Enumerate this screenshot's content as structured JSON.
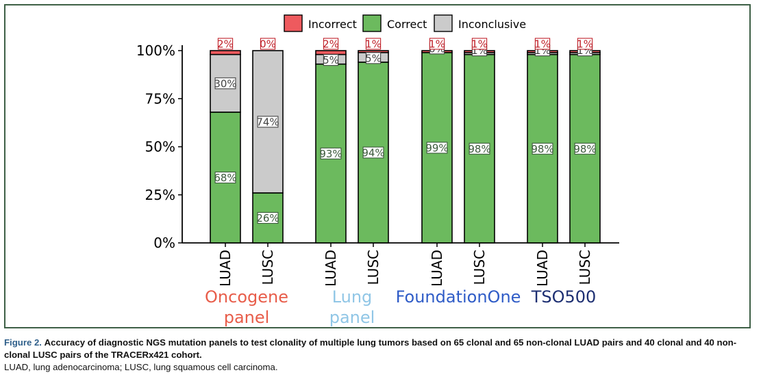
{
  "chart_data": {
    "type": "stacked-bar",
    "y_axis": {
      "ticks": [
        "0%",
        "25%",
        "50%",
        "75%",
        "100%"
      ],
      "ylim": [
        0,
        100
      ],
      "unit": "%"
    },
    "legend": {
      "placement": "top-center",
      "entries": [
        {
          "name": "Incorrect",
          "color": "#ee5a5e"
        },
        {
          "name": "Correct",
          "color": "#6cba5e"
        },
        {
          "name": "Inconclusive",
          "color": "#cbcbcb"
        }
      ]
    },
    "groups": [
      {
        "name": "Oncogene panel",
        "label_lines": [
          "Oncogene",
          "panel"
        ],
        "color": "#e85d4a",
        "bars": [
          {
            "label": "LUAD",
            "correct": 68,
            "inconclusive": 30,
            "incorrect": 2,
            "labels": {
              "correct": "68%",
              "inconclusive": "30%",
              "incorrect": "2%"
            }
          },
          {
            "label": "LUSC",
            "correct": 26,
            "inconclusive": 74,
            "incorrect": 0,
            "labels": {
              "correct": "26%",
              "inconclusive": "74%",
              "incorrect": "0%"
            }
          }
        ]
      },
      {
        "name": "Lung panel",
        "label_lines": [
          "Lung",
          "panel"
        ],
        "color": "#90c6e6",
        "bars": [
          {
            "label": "LUAD",
            "correct": 93,
            "inconclusive": 5,
            "incorrect": 2,
            "labels": {
              "correct": "93%",
              "inconclusive": "5%",
              "incorrect": "2%"
            }
          },
          {
            "label": "LUSC",
            "correct": 94,
            "inconclusive": 5,
            "incorrect": 1,
            "labels": {
              "correct": "94%",
              "inconclusive": "5%",
              "incorrect": "1%"
            }
          }
        ]
      },
      {
        "name": "FoundationOne",
        "label_lines": [
          "FoundationOne"
        ],
        "color": "#2f5cc7",
        "bars": [
          {
            "label": "LUAD",
            "correct": 99,
            "inconclusive": 0,
            "incorrect": 1,
            "labels": {
              "correct": "99%",
              "inconclusive": "0%",
              "incorrect": "1%"
            }
          },
          {
            "label": "LUSC",
            "correct": 98,
            "inconclusive": 1,
            "incorrect": 1,
            "labels": {
              "correct": "98%",
              "inconclusive": "1%",
              "incorrect": "1%"
            }
          }
        ]
      },
      {
        "name": "TSO500",
        "label_lines": [
          "TSO500"
        ],
        "color": "#1d2f72",
        "bars": [
          {
            "label": "LUAD",
            "correct": 98,
            "inconclusive": 1,
            "incorrect": 1,
            "labels": {
              "correct": "98%",
              "inconclusive": "1%",
              "incorrect": "1%"
            }
          },
          {
            "label": "LUSC",
            "correct": 98,
            "inconclusive": 1,
            "incorrect": 1,
            "labels": {
              "correct": "98%",
              "inconclusive": "1%",
              "incorrect": "1%"
            }
          }
        ]
      }
    ]
  },
  "caption": {
    "figure_label": "Figure 2.",
    "text": "Accuracy of diagnostic NGS mutation panels to test clonality of multiple lung tumors based on 65 clonal and 65 non-clonal LUAD pairs and 40 clonal and 40 non-clonal LUSC pairs of the TRACERx421 cohort.",
    "abbreviations": "LUAD, lung adenocarcinoma; LUSC, lung squamous cell carcinoma."
  }
}
